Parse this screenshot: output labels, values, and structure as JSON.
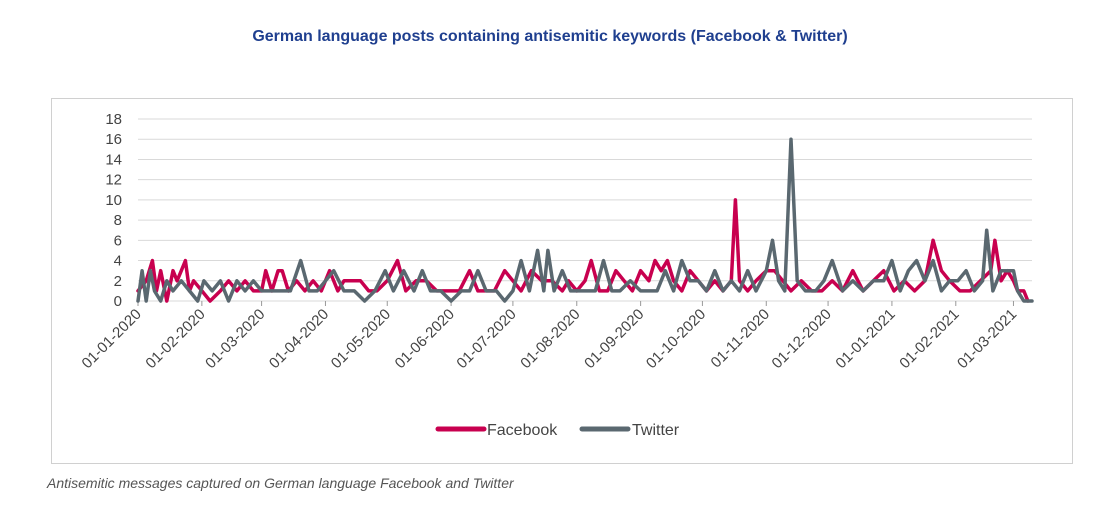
{
  "title": "German language posts containing antisemitic keywords (Facebook & Twitter)",
  "caption": "Antisemitic messages captured on German language Facebook and Twitter",
  "chart_data": {
    "type": "line",
    "title": "German language posts containing antisemitic keywords (Facebook & Twitter)",
    "xlabel": "",
    "ylabel": "",
    "ylim": [
      0,
      18
    ],
    "yticks": [
      "0",
      "2",
      "4",
      "6",
      "8",
      "10",
      "12",
      "14",
      "16",
      "18"
    ],
    "xticks": [
      "01-01-2020",
      "01-02-2020",
      "01-03-2020",
      "01-04-2020",
      "01-05-2020",
      "01-06-2020",
      "01-07-2020",
      "01-08-2020",
      "01-09-2020",
      "01-10-2020",
      "01-11-2020",
      "01-12-2020",
      "01-01-2021",
      "01-02-2021",
      "01-03-2021"
    ],
    "grid": true,
    "legend": "bottom",
    "series": [
      {
        "name": "Facebook",
        "color": "#c8004f",
        "points": [
          [
            "01-01-2020",
            1
          ],
          [
            "05-01-2020",
            2
          ],
          [
            "08-01-2020",
            4
          ],
          [
            "10-01-2020",
            1
          ],
          [
            "12-01-2020",
            3
          ],
          [
            "15-01-2020",
            0
          ],
          [
            "18-01-2020",
            3
          ],
          [
            "20-01-2020",
            2
          ],
          [
            "22-01-2020",
            3
          ],
          [
            "24-01-2020",
            4
          ],
          [
            "26-01-2020",
            1
          ],
          [
            "28-01-2020",
            2
          ],
          [
            "01-02-2020",
            1
          ],
          [
            "05-02-2020",
            0
          ],
          [
            "10-02-2020",
            1
          ],
          [
            "14-02-2020",
            2
          ],
          [
            "18-02-2020",
            1
          ],
          [
            "22-02-2020",
            2
          ],
          [
            "26-02-2020",
            1
          ],
          [
            "01-03-2020",
            1
          ],
          [
            "03-03-2020",
            3
          ],
          [
            "06-03-2020",
            1
          ],
          [
            "09-03-2020",
            3
          ],
          [
            "11-03-2020",
            3
          ],
          [
            "14-03-2020",
            1
          ],
          [
            "18-03-2020",
            2
          ],
          [
            "22-03-2020",
            1
          ],
          [
            "26-03-2020",
            2
          ],
          [
            "30-03-2020",
            1
          ],
          [
            "03-04-2020",
            3
          ],
          [
            "07-04-2020",
            1
          ],
          [
            "10-04-2020",
            2
          ],
          [
            "14-04-2020",
            2
          ],
          [
            "18-04-2020",
            2
          ],
          [
            "22-04-2020",
            1
          ],
          [
            "26-04-2020",
            1
          ],
          [
            "01-05-2020",
            2
          ],
          [
            "06-05-2020",
            4
          ],
          [
            "10-05-2020",
            1
          ],
          [
            "15-05-2020",
            2
          ],
          [
            "20-05-2020",
            2
          ],
          [
            "25-05-2020",
            1
          ],
          [
            "01-06-2020",
            1
          ],
          [
            "05-06-2020",
            1
          ],
          [
            "10-06-2020",
            3
          ],
          [
            "14-06-2020",
            1
          ],
          [
            "18-06-2020",
            1
          ],
          [
            "22-06-2020",
            1
          ],
          [
            "27-06-2020",
            3
          ],
          [
            "01-07-2020",
            2
          ],
          [
            "05-07-2020",
            1
          ],
          [
            "10-07-2020",
            3
          ],
          [
            "15-07-2020",
            2
          ],
          [
            "20-07-2020",
            2
          ],
          [
            "25-07-2020",
            1
          ],
          [
            "28-07-2020",
            2
          ],
          [
            "01-08-2020",
            1
          ],
          [
            "05-08-2020",
            2
          ],
          [
            "08-08-2020",
            4
          ],
          [
            "12-08-2020",
            1
          ],
          [
            "16-08-2020",
            1
          ],
          [
            "20-08-2020",
            3
          ],
          [
            "24-08-2020",
            2
          ],
          [
            "28-08-2020",
            1
          ],
          [
            "01-09-2020",
            3
          ],
          [
            "05-09-2020",
            2
          ],
          [
            "08-09-2020",
            4
          ],
          [
            "11-09-2020",
            3
          ],
          [
            "14-09-2020",
            4
          ],
          [
            "17-09-2020",
            2
          ],
          [
            "21-09-2020",
            1
          ],
          [
            "25-09-2020",
            3
          ],
          [
            "29-09-2020",
            2
          ],
          [
            "03-10-2020",
            1
          ],
          [
            "07-10-2020",
            2
          ],
          [
            "11-10-2020",
            1
          ],
          [
            "15-10-2020",
            2
          ],
          [
            "17-10-2020",
            10
          ],
          [
            "19-10-2020",
            2
          ],
          [
            "23-10-2020",
            1
          ],
          [
            "27-10-2020",
            2
          ],
          [
            "01-11-2020",
            3
          ],
          [
            "05-11-2020",
            3
          ],
          [
            "09-11-2020",
            2
          ],
          [
            "13-11-2020",
            1
          ],
          [
            "18-11-2020",
            2
          ],
          [
            "23-11-2020",
            1
          ],
          [
            "28-11-2020",
            1
          ],
          [
            "03-12-2020",
            2
          ],
          [
            "08-12-2020",
            1
          ],
          [
            "13-12-2020",
            3
          ],
          [
            "18-12-2020",
            1
          ],
          [
            "23-12-2020",
            2
          ],
          [
            "28-12-2020",
            3
          ],
          [
            "02-01-2021",
            1
          ],
          [
            "07-01-2021",
            2
          ],
          [
            "12-01-2021",
            1
          ],
          [
            "17-01-2021",
            2
          ],
          [
            "21-01-2021",
            6
          ],
          [
            "25-01-2021",
            3
          ],
          [
            "29-01-2021",
            2
          ],
          [
            "03-02-2021",
            1
          ],
          [
            "08-02-2021",
            1
          ],
          [
            "13-02-2021",
            2
          ],
          [
            "18-02-2021",
            3
          ],
          [
            "20-02-2021",
            6
          ],
          [
            "23-02-2021",
            2
          ],
          [
            "26-02-2021",
            3
          ],
          [
            "01-03-2021",
            2
          ],
          [
            "03-03-2021",
            1
          ],
          [
            "06-03-2021",
            1
          ],
          [
            "08-03-2021",
            0
          ]
        ]
      },
      {
        "name": "Twitter",
        "color": "#5a6870",
        "points": [
          [
            "01-01-2020",
            0
          ],
          [
            "03-01-2020",
            3
          ],
          [
            "05-01-2020",
            0
          ],
          [
            "07-01-2020",
            3
          ],
          [
            "09-01-2020",
            1
          ],
          [
            "12-01-2020",
            0
          ],
          [
            "15-01-2020",
            2
          ],
          [
            "18-01-2020",
            1
          ],
          [
            "22-01-2020",
            2
          ],
          [
            "26-01-2020",
            1
          ],
          [
            "30-01-2020",
            0
          ],
          [
            "02-02-2020",
            2
          ],
          [
            "06-02-2020",
            1
          ],
          [
            "10-02-2020",
            2
          ],
          [
            "14-02-2020",
            0
          ],
          [
            "18-02-2020",
            2
          ],
          [
            "22-02-2020",
            1
          ],
          [
            "26-02-2020",
            2
          ],
          [
            "01-03-2020",
            1
          ],
          [
            "05-03-2020",
            1
          ],
          [
            "10-03-2020",
            1
          ],
          [
            "15-03-2020",
            1
          ],
          [
            "20-03-2020",
            4
          ],
          [
            "24-03-2020",
            1
          ],
          [
            "28-03-2020",
            1
          ],
          [
            "01-04-2020",
            2
          ],
          [
            "05-04-2020",
            3
          ],
          [
            "10-04-2020",
            1
          ],
          [
            "15-04-2020",
            1
          ],
          [
            "20-04-2020",
            0
          ],
          [
            "25-04-2020",
            1
          ],
          [
            "30-04-2020",
            3
          ],
          [
            "04-05-2020",
            1
          ],
          [
            "09-05-2020",
            3
          ],
          [
            "14-05-2020",
            1
          ],
          [
            "18-05-2020",
            3
          ],
          [
            "22-05-2020",
            1
          ],
          [
            "27-05-2020",
            1
          ],
          [
            "01-06-2020",
            0
          ],
          [
            "06-06-2020",
            1
          ],
          [
            "10-06-2020",
            1
          ],
          [
            "14-06-2020",
            3
          ],
          [
            "18-06-2020",
            1
          ],
          [
            "23-06-2020",
            1
          ],
          [
            "27-06-2020",
            0
          ],
          [
            "01-07-2020",
            1
          ],
          [
            "05-07-2020",
            4
          ],
          [
            "09-07-2020",
            1
          ],
          [
            "13-07-2020",
            5
          ],
          [
            "16-07-2020",
            1
          ],
          [
            "18-07-2020",
            5
          ],
          [
            "21-07-2020",
            1
          ],
          [
            "25-07-2020",
            3
          ],
          [
            "29-07-2020",
            1
          ],
          [
            "02-08-2020",
            1
          ],
          [
            "06-08-2020",
            1
          ],
          [
            "10-08-2020",
            1
          ],
          [
            "14-08-2020",
            4
          ],
          [
            "18-08-2020",
            1
          ],
          [
            "22-08-2020",
            1
          ],
          [
            "27-08-2020",
            2
          ],
          [
            "01-09-2020",
            1
          ],
          [
            "05-09-2020",
            1
          ],
          [
            "09-09-2020",
            1
          ],
          [
            "13-09-2020",
            3
          ],
          [
            "17-09-2020",
            1
          ],
          [
            "21-09-2020",
            4
          ],
          [
            "25-09-2020",
            2
          ],
          [
            "29-09-2020",
            2
          ],
          [
            "03-10-2020",
            1
          ],
          [
            "07-10-2020",
            3
          ],
          [
            "11-10-2020",
            1
          ],
          [
            "15-10-2020",
            2
          ],
          [
            "19-10-2020",
            1
          ],
          [
            "23-10-2020",
            3
          ],
          [
            "27-10-2020",
            1
          ],
          [
            "01-11-2020",
            3
          ],
          [
            "04-11-2020",
            6
          ],
          [
            "07-11-2020",
            2
          ],
          [
            "10-11-2020",
            1
          ],
          [
            "13-11-2020",
            16
          ],
          [
            "16-11-2020",
            2
          ],
          [
            "20-11-2020",
            1
          ],
          [
            "25-11-2020",
            1
          ],
          [
            "29-11-2020",
            2
          ],
          [
            "03-12-2020",
            4
          ],
          [
            "08-12-2020",
            1
          ],
          [
            "13-12-2020",
            2
          ],
          [
            "18-12-2020",
            1
          ],
          [
            "23-12-2020",
            2
          ],
          [
            "28-12-2020",
            2
          ],
          [
            "01-01-2021",
            4
          ],
          [
            "05-01-2021",
            1
          ],
          [
            "09-01-2021",
            3
          ],
          [
            "13-01-2021",
            4
          ],
          [
            "17-01-2021",
            2
          ],
          [
            "21-01-2021",
            4
          ],
          [
            "25-01-2021",
            1
          ],
          [
            "29-01-2021",
            2
          ],
          [
            "02-02-2021",
            2
          ],
          [
            "06-02-2021",
            3
          ],
          [
            "10-02-2021",
            1
          ],
          [
            "14-02-2021",
            2
          ],
          [
            "16-02-2021",
            7
          ],
          [
            "19-02-2021",
            1
          ],
          [
            "23-02-2021",
            3
          ],
          [
            "26-02-2021",
            3
          ],
          [
            "01-03-2021",
            3
          ],
          [
            "03-03-2021",
            1
          ],
          [
            "06-03-2021",
            0
          ],
          [
            "10-03-2021",
            0
          ]
        ]
      }
    ]
  }
}
